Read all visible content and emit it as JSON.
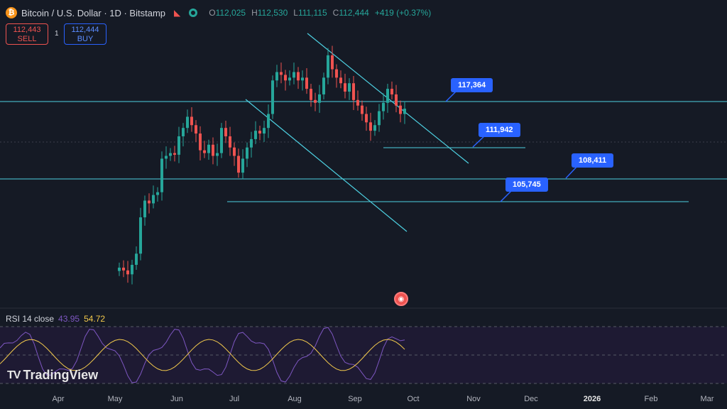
{
  "header": {
    "coin_icon": "bitcoin-icon",
    "coin_glyph": "₿",
    "title": "Bitcoin / U.S. Dollar · 1D · Bitstamp",
    "ohlc": [
      {
        "label": "O",
        "value": "112,025"
      },
      {
        "label": "H",
        "value": "112,530"
      },
      {
        "label": "L",
        "value": "111,115"
      },
      {
        "label": "C",
        "value": "112,444"
      },
      {
        "label": "",
        "value": "+419 (+0.37%)"
      }
    ]
  },
  "trade": {
    "sell_price": "112,443",
    "sell_label": "SELL",
    "spread": "1",
    "buy_price": "112,444",
    "buy_label": "BUY"
  },
  "levels": [
    {
      "value": "117,364"
    },
    {
      "value": "111,942"
    },
    {
      "value": "108,411"
    },
    {
      "value": "105,745"
    }
  ],
  "rsi": {
    "label": "RSI 14 close",
    "rsi_value": "43.95",
    "ma_value": "54.72"
  },
  "logo": {
    "text": "TradingView",
    "mark": "TV"
  },
  "months": [
    "Apr",
    "May",
    "Jun",
    "Jul",
    "Aug",
    "Sep",
    "Oct",
    "Nov",
    "Dec",
    "2026",
    "Feb",
    "Mar"
  ],
  "colors": {
    "up": "#26a69a",
    "down": "#ef5350",
    "accent": "#2962ff",
    "line": "#4dd0e1",
    "rsi": "#7e57c2",
    "rsi_ma": "#f2c94c"
  },
  "chart_data": {
    "type": "candlestick",
    "symbol": "Bitcoin / U.S. Dollar",
    "interval": "1D",
    "exchange": "Bitstamp",
    "horizontal_levels": [
      117364,
      111942,
      108411,
      105745
    ],
    "close_series": [
      84000,
      83500,
      82800,
      84500,
      86500,
      93000,
      96000,
      95500,
      97000,
      97500,
      103500,
      104000,
      104500,
      104200,
      107500,
      109000,
      111000,
      109500,
      108000,
      105000,
      104500,
      106000,
      104000,
      104500,
      109000,
      107500,
      105500,
      104000,
      101000,
      103500,
      105500,
      107000,
      108500,
      108000,
      109000,
      111500,
      117500,
      119000,
      118500,
      117500,
      118000,
      119000,
      117500,
      118000,
      116000,
      114000,
      113500,
      115000,
      118000,
      122000,
      119500,
      118000,
      117000,
      115500,
      117000,
      114000,
      113000,
      111500,
      110000,
      108500,
      109500,
      112000,
      113500,
      116000,
      115000,
      113000,
      111500,
      112444
    ]
  }
}
